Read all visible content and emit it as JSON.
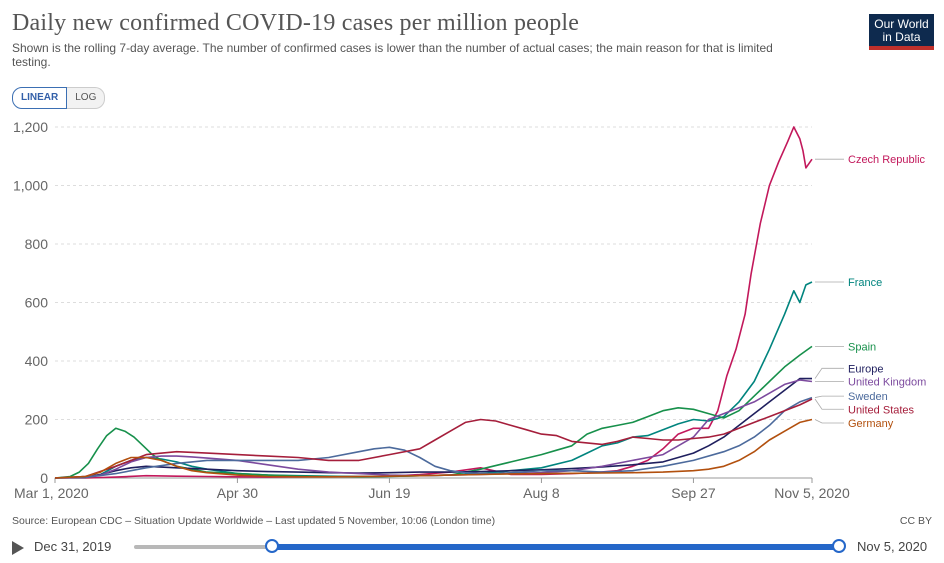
{
  "header": {
    "title": "Daily new confirmed COVID-19 cases per million people",
    "subtitle": "Shown is the rolling 7-day average. The number of confirmed cases is lower than the number of actual cases; the main reason for that is limited testing.",
    "logo_line1": "Our World",
    "logo_line2": "in Data"
  },
  "controls": {
    "linear_label": "LINEAR",
    "log_label": "LOG"
  },
  "footer": {
    "source": "Source: European CDC – Situation Update Worldwide – Last updated 5 November, 10:06 (London time)",
    "license": "CC BY"
  },
  "timeline": {
    "start_label": "Dec 31, 2019",
    "end_label": "Nov 5, 2020"
  },
  "chart_data": {
    "type": "line",
    "title": "Daily new confirmed COVID-19 cases per million people",
    "xlabel": "",
    "ylabel": "",
    "x_ticks": [
      {
        "day": 0,
        "label": "Mar 1, 2020"
      },
      {
        "day": 60,
        "label": "Apr 30"
      },
      {
        "day": 110,
        "label": "Jun 19"
      },
      {
        "day": 160,
        "label": "Aug 8"
      },
      {
        "day": 210,
        "label": "Sep 27"
      },
      {
        "day": 249,
        "label": "Nov 5, 2020"
      }
    ],
    "y_ticks": [
      0,
      200,
      400,
      600,
      800,
      1000,
      1200
    ],
    "y_tick_labels": [
      "0",
      "200",
      "400",
      "600",
      "800",
      "1,000",
      "1,200"
    ],
    "xlim": [
      0,
      249
    ],
    "ylim": [
      0,
      1200
    ],
    "grid": "horizontal-dashed",
    "series": [
      {
        "name": "Czech Republic",
        "color": "#c2185b",
        "x": [
          0,
          10,
          20,
          30,
          40,
          50,
          60,
          70,
          80,
          90,
          100,
          110,
          120,
          130,
          140,
          150,
          160,
          170,
          175,
          180,
          185,
          190,
          195,
          200,
          205,
          210,
          215,
          218,
          221,
          224,
          227,
          229,
          232,
          235,
          238,
          241,
          243,
          245,
          246,
          247,
          249
        ],
        "y": [
          0,
          0,
          3,
          8,
          6,
          5,
          4,
          3,
          4,
          5,
          5,
          6,
          12,
          20,
          35,
          12,
          12,
          15,
          17,
          21,
          25,
          40,
          60,
          100,
          150,
          170,
          170,
          230,
          350,
          440,
          560,
          700,
          870,
          1000,
          1080,
          1150,
          1200,
          1160,
          1120,
          1060,
          1090
        ]
      },
      {
        "name": "France",
        "color": "#00847e",
        "x": [
          0,
          10,
          15,
          20,
          25,
          30,
          35,
          40,
          45,
          50,
          60,
          70,
          80,
          90,
          100,
          110,
          120,
          130,
          140,
          150,
          160,
          170,
          175,
          180,
          185,
          190,
          195,
          200,
          205,
          210,
          215,
          220,
          225,
          230,
          235,
          240,
          243,
          245,
          247,
          249
        ],
        "y": [
          0,
          2,
          12,
          40,
          60,
          70,
          65,
          55,
          40,
          30,
          15,
          10,
          8,
          6,
          5,
          6,
          8,
          10,
          15,
          25,
          35,
          60,
          85,
          110,
          120,
          140,
          145,
          165,
          185,
          200,
          195,
          210,
          260,
          330,
          440,
          560,
          640,
          600,
          660,
          670
        ]
      },
      {
        "name": "Spain",
        "color": "#17904b",
        "x": [
          0,
          5,
          8,
          11,
          14,
          17,
          20,
          23,
          26,
          29,
          32,
          35,
          40,
          45,
          50,
          60,
          70,
          80,
          90,
          100,
          110,
          120,
          130,
          140,
          150,
          160,
          165,
          170,
          175,
          180,
          185,
          190,
          195,
          200,
          205,
          210,
          215,
          220,
          225,
          230,
          235,
          240,
          245,
          249
        ],
        "y": [
          0,
          5,
          20,
          50,
          100,
          145,
          170,
          160,
          140,
          110,
          80,
          60,
          40,
          30,
          20,
          15,
          10,
          6,
          5,
          4,
          5,
          8,
          10,
          30,
          55,
          80,
          95,
          110,
          150,
          170,
          180,
          190,
          210,
          230,
          240,
          235,
          220,
          205,
          230,
          280,
          330,
          380,
          420,
          450
        ]
      },
      {
        "name": "Europe",
        "color": "#1f1f5e",
        "x": [
          0,
          10,
          15,
          20,
          25,
          30,
          40,
          50,
          60,
          70,
          80,
          90,
          100,
          110,
          120,
          130,
          140,
          150,
          160,
          170,
          180,
          190,
          200,
          210,
          215,
          220,
          225,
          230,
          235,
          240,
          245,
          249
        ],
        "y": [
          0,
          5,
          12,
          25,
          35,
          40,
          35,
          30,
          25,
          22,
          20,
          18,
          17,
          18,
          20,
          20,
          22,
          25,
          28,
          32,
          38,
          45,
          55,
          85,
          110,
          140,
          180,
          220,
          260,
          300,
          340,
          340
        ]
      },
      {
        "name": "United Kingdom",
        "color": "#7c4a9e",
        "x": [
          0,
          10,
          15,
          20,
          25,
          30,
          35,
          40,
          45,
          50,
          60,
          70,
          80,
          90,
          100,
          110,
          120,
          130,
          140,
          150,
          160,
          170,
          180,
          190,
          200,
          210,
          215,
          220,
          225,
          230,
          235,
          240,
          245,
          249
        ],
        "y": [
          0,
          3,
          10,
          30,
          55,
          70,
          75,
          75,
          72,
          68,
          60,
          45,
          30,
          20,
          15,
          10,
          8,
          10,
          12,
          15,
          18,
          25,
          40,
          60,
          80,
          140,
          200,
          220,
          240,
          260,
          290,
          320,
          335,
          330
        ]
      },
      {
        "name": "Sweden",
        "color": "#4c6a9c",
        "x": [
          0,
          10,
          20,
          30,
          40,
          50,
          60,
          70,
          80,
          90,
          100,
          105,
          110,
          115,
          120,
          125,
          130,
          135,
          140,
          145,
          150,
          160,
          170,
          180,
          190,
          200,
          210,
          220,
          225,
          230,
          235,
          240,
          245,
          249
        ],
        "y": [
          0,
          2,
          15,
          35,
          50,
          60,
          60,
          60,
          60,
          70,
          90,
          100,
          105,
          95,
          70,
          40,
          25,
          18,
          15,
          15,
          18,
          25,
          25,
          20,
          25,
          40,
          60,
          90,
          110,
          140,
          180,
          230,
          260,
          275
        ]
      },
      {
        "name": "United States",
        "color": "#a51e3b",
        "x": [
          0,
          10,
          20,
          30,
          40,
          50,
          60,
          70,
          80,
          90,
          100,
          110,
          120,
          125,
          130,
          135,
          140,
          145,
          150,
          155,
          160,
          165,
          170,
          175,
          180,
          185,
          190,
          195,
          200,
          205,
          210,
          215,
          220,
          225,
          230,
          235,
          240,
          245,
          249
        ],
        "y": [
          0,
          5,
          40,
          80,
          90,
          85,
          80,
          75,
          70,
          60,
          60,
          80,
          100,
          130,
          160,
          190,
          200,
          195,
          180,
          165,
          150,
          145,
          125,
          120,
          115,
          125,
          140,
          135,
          130,
          130,
          135,
          140,
          150,
          170,
          190,
          210,
          230,
          250,
          270
        ]
      },
      {
        "name": "Germany",
        "color": "#b2500e",
        "x": [
          0,
          10,
          15,
          20,
          25,
          30,
          35,
          40,
          45,
          50,
          60,
          70,
          80,
          90,
          100,
          110,
          120,
          130,
          140,
          150,
          160,
          170,
          180,
          190,
          200,
          210,
          215,
          220,
          225,
          230,
          235,
          240,
          245,
          249
        ],
        "y": [
          0,
          5,
          20,
          50,
          70,
          70,
          60,
          40,
          25,
          18,
          10,
          5,
          4,
          4,
          5,
          6,
          8,
          10,
          12,
          14,
          15,
          16,
          17,
          18,
          20,
          25,
          30,
          40,
          60,
          90,
          130,
          160,
          190,
          200
        ]
      }
    ],
    "label_positions": {
      "Czech Republic": 1090,
      "France": 670,
      "Spain": 450,
      "Europe": 375,
      "United Kingdom": 330,
      "Sweden": 280,
      "United States": 235,
      "Germany": 188
    }
  }
}
